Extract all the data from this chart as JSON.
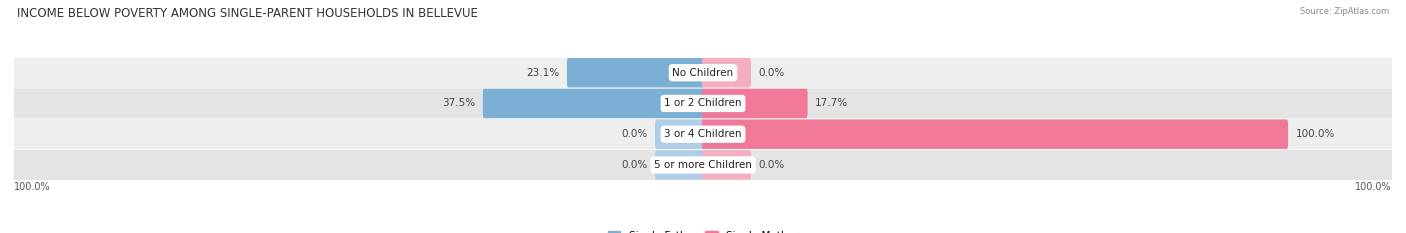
{
  "title": "INCOME BELOW POVERTY AMONG SINGLE-PARENT HOUSEHOLDS IN BELLEVUE",
  "source": "Source: ZipAtlas.com",
  "categories": [
    "No Children",
    "1 or 2 Children",
    "3 or 4 Children",
    "5 or more Children"
  ],
  "single_father": [
    23.1,
    37.5,
    0.0,
    0.0
  ],
  "single_mother": [
    0.0,
    17.7,
    100.0,
    0.0
  ],
  "father_color": "#7bafd4",
  "mother_color": "#f07898",
  "father_color_light": "#aecde8",
  "mother_color_light": "#f4aec0",
  "row_bg_even": "#eeeeee",
  "row_bg_odd": "#e4e4e4",
  "title_fontsize": 8.5,
  "label_fontsize": 7.5,
  "cat_fontsize": 7.5,
  "axis_max": 100.0,
  "background_color": "#ffffff",
  "stub_size": 8.0
}
